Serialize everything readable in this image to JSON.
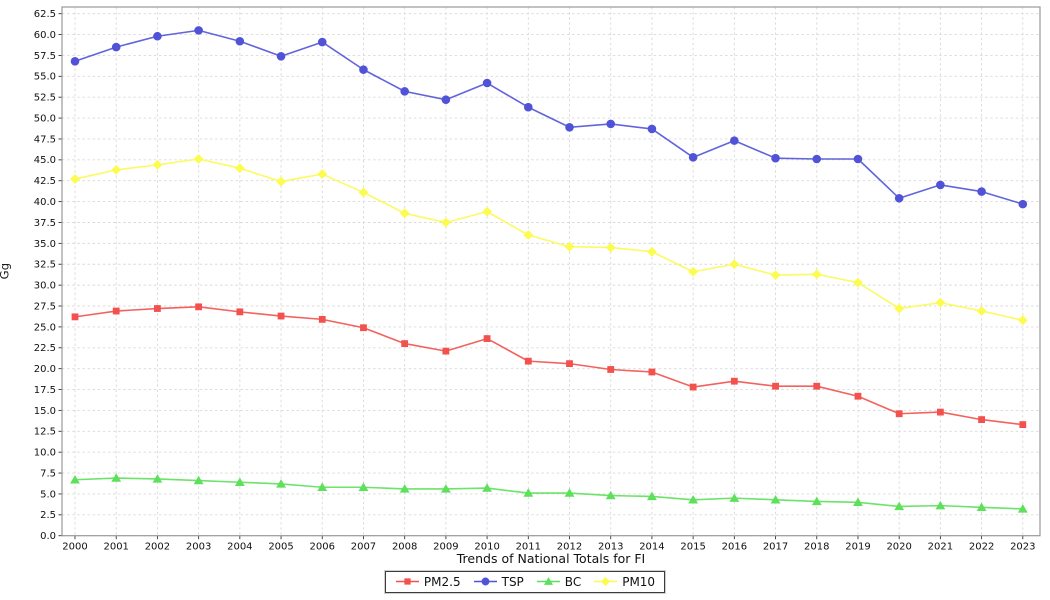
{
  "chart_data": {
    "type": "line",
    "title": "Trends of National Totals for FI",
    "xlabel": "",
    "ylabel": "Gg",
    "grid": true,
    "legend_position": "bottom-center",
    "ylim": [
      0,
      63.3
    ],
    "y_tick_labels": [
      "0.0",
      "2.5",
      "5.0",
      "7.5",
      "10.0",
      "12.5",
      "15.0",
      "17.5",
      "20.0",
      "22.5",
      "25.0",
      "27.5",
      "30.0",
      "32.5",
      "35.0",
      "37.5",
      "40.0",
      "42.5",
      "45.0",
      "47.5",
      "50.0",
      "52.5",
      "55.0",
      "57.5",
      "60.0",
      "62.5"
    ],
    "x": [
      2000,
      2001,
      2002,
      2003,
      2004,
      2005,
      2006,
      2007,
      2008,
      2009,
      2010,
      2011,
      2012,
      2013,
      2014,
      2015,
      2016,
      2017,
      2018,
      2019,
      2020,
      2021,
      2022,
      2023
    ],
    "series": [
      {
        "name": "PM2.5",
        "marker": "square",
        "color": "#f2514d",
        "values": [
          26.2,
          26.9,
          27.2,
          27.4,
          26.8,
          26.3,
          25.9,
          24.9,
          23.0,
          22.1,
          23.6,
          20.9,
          20.6,
          19.9,
          19.6,
          17.8,
          18.5,
          17.9,
          17.9,
          16.7,
          14.6,
          14.8,
          13.9,
          13.3
        ]
      },
      {
        "name": "TSP",
        "marker": "circle",
        "color": "#5153d7",
        "values": [
          56.8,
          58.5,
          59.8,
          60.5,
          59.2,
          57.4,
          59.1,
          55.8,
          53.2,
          52.2,
          54.2,
          51.3,
          48.9,
          49.3,
          48.7,
          45.3,
          47.3,
          45.2,
          45.1,
          45.1,
          40.4,
          42.0,
          41.2,
          39.7
        ]
      },
      {
        "name": "BC",
        "marker": "triangle",
        "color": "#5de05a",
        "values": [
          6.7,
          6.9,
          6.8,
          6.6,
          6.4,
          6.2,
          5.8,
          5.8,
          5.6,
          5.6,
          5.7,
          5.1,
          5.1,
          4.8,
          4.7,
          4.3,
          4.5,
          4.3,
          4.1,
          4.0,
          3.5,
          3.6,
          3.4,
          3.2
        ]
      },
      {
        "name": "PM10",
        "marker": "diamond",
        "color": "#fbfb50",
        "values": [
          42.7,
          43.8,
          44.4,
          45.1,
          44.0,
          42.4,
          43.3,
          41.1,
          38.6,
          37.5,
          38.8,
          36.0,
          34.6,
          34.5,
          34.0,
          31.6,
          32.5,
          31.2,
          31.3,
          30.3,
          27.2,
          27.9,
          26.9,
          25.8
        ]
      }
    ],
    "style": {
      "grid_color": "#d9d9d9",
      "spine_color": "#999999",
      "tick_color": "#333333",
      "text_color": "#111111"
    }
  }
}
